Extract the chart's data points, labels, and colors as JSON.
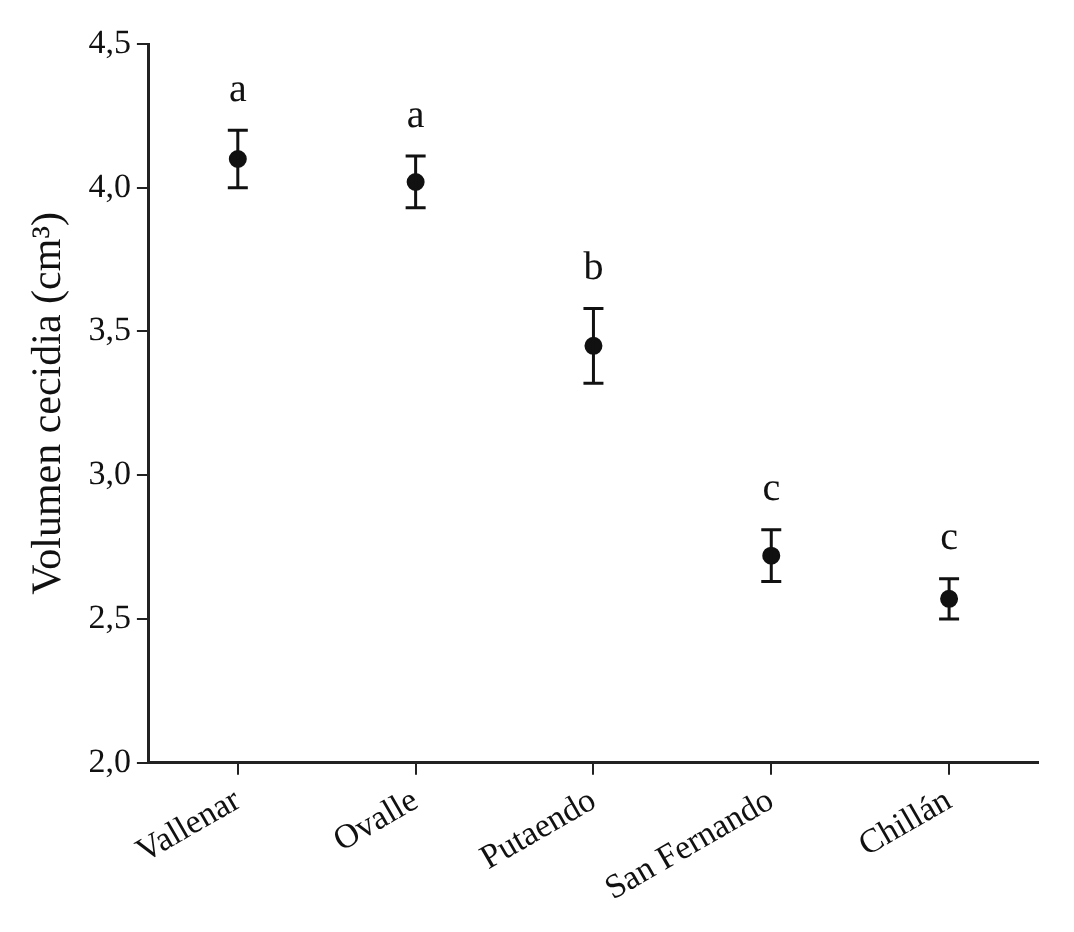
{
  "chart_data": {
    "type": "scatter",
    "ylabel": "Volumen cecidia (cm³)",
    "marker": "circle",
    "categories": [
      "Vallenar",
      "Ovalle",
      "Putaendo",
      "San Fernando",
      "Chillán"
    ],
    "values": [
      4.1,
      4.02,
      3.45,
      2.72,
      2.57
    ],
    "errors": [
      0.1,
      0.09,
      0.13,
      0.09,
      0.07
    ],
    "color": "#111111",
    "ylim": [
      2.0,
      4.5
    ],
    "yticks": [
      {
        "value": 2.0,
        "label": "2,0"
      },
      {
        "value": 2.5,
        "label": "2,5"
      },
      {
        "value": 3.0,
        "label": "3,0"
      },
      {
        "value": 3.5,
        "label": "3,5"
      },
      {
        "value": 4.0,
        "label": "4,0"
      },
      {
        "value": 4.5,
        "label": "4,5"
      }
    ],
    "annotations": [
      "a",
      "a",
      "b",
      "c",
      "c"
    ]
  }
}
